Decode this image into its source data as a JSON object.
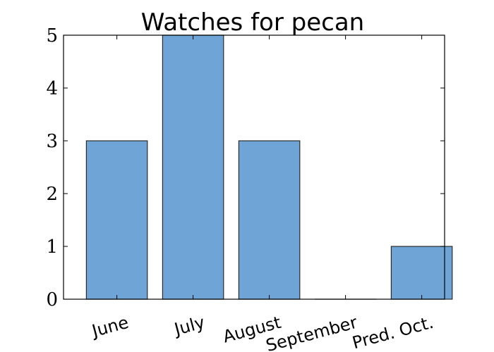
{
  "chart_data": {
    "type": "bar",
    "title": "Watches for pecan",
    "xlabel": "",
    "ylabel": "",
    "categories": [
      "June",
      "July",
      "August",
      "September",
      "Pred. Oct."
    ],
    "values": [
      3,
      5,
      3,
      0,
      1
    ],
    "ylim": [
      0,
      5
    ],
    "yticks": [
      "0",
      "1",
      "2",
      "3",
      "4",
      "5"
    ],
    "grid": false,
    "legend": "none",
    "bar_color": "#6fa5d6",
    "bar_edge_color": "#2b2b2b"
  }
}
